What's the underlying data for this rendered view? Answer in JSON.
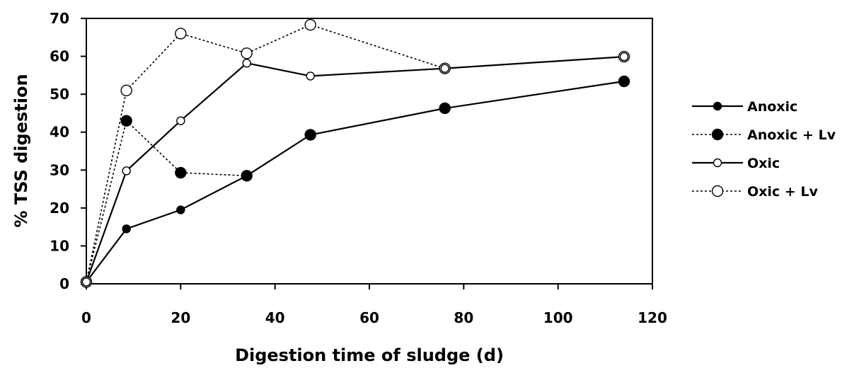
{
  "chart_data": {
    "type": "line",
    "title": "",
    "xlabel": "Digestion time of sludge (d)",
    "ylabel": "% TSS digestion",
    "xlim": [
      0,
      120
    ],
    "ylim": [
      0,
      70
    ],
    "xticks": [
      0,
      20,
      40,
      60,
      80,
      100,
      120
    ],
    "yticks": [
      0,
      10,
      20,
      30,
      40,
      50,
      60,
      70
    ],
    "grid": false,
    "legend_position": "right",
    "series": [
      {
        "name": "Anoxic",
        "line_style": "solid",
        "marker": "filled-circle",
        "marker_size": "small",
        "points": [
          [
            0,
            0.5
          ],
          [
            8.5,
            14.5
          ],
          [
            20,
            19.5
          ],
          [
            34,
            28.5
          ],
          [
            47.5,
            39.3
          ],
          [
            76,
            46.3
          ],
          [
            114,
            53.4
          ]
        ]
      },
      {
        "name": "Anoxic + Lv",
        "line_style": "dotted",
        "marker": "filled-circle",
        "marker_size": "large",
        "points": [
          [
            0,
            0.5
          ],
          [
            8.5,
            43
          ],
          [
            20,
            29.3
          ],
          [
            34,
            28.5
          ],
          [
            47.5,
            39.3
          ],
          [
            76,
            46.3
          ],
          [
            114,
            53.4
          ]
        ]
      },
      {
        "name": "Oxic",
        "line_style": "solid",
        "marker": "open-circle",
        "marker_size": "small",
        "points": [
          [
            0,
            0.5
          ],
          [
            8.5,
            29.8
          ],
          [
            20,
            43
          ],
          [
            34,
            58.2
          ],
          [
            47.5,
            54.8
          ],
          [
            76,
            56.8
          ],
          [
            114,
            59.9
          ]
        ]
      },
      {
        "name": "Oxic + Lv",
        "line_style": "dotted",
        "marker": "open-circle",
        "marker_size": "large",
        "points": [
          [
            0,
            0.5
          ],
          [
            8.5,
            51
          ],
          [
            20,
            66
          ],
          [
            34,
            60.8
          ],
          [
            47.5,
            68.3
          ],
          [
            76,
            56.8
          ],
          [
            114,
            59.9
          ]
        ]
      }
    ]
  }
}
